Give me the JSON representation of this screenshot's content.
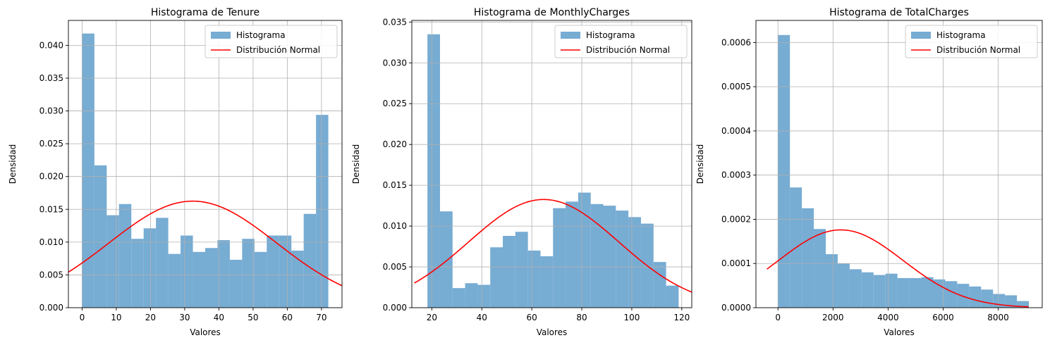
{
  "chart_data": [
    {
      "type": "bar",
      "title": "Histograma de Tenure",
      "xlabel": "Valores",
      "ylabel": "Densidad",
      "xlim": [
        -4,
        76
      ],
      "ylim": [
        0,
        0.0438
      ],
      "xticks": [
        0,
        10,
        20,
        30,
        40,
        50,
        60,
        70
      ],
      "xtick_labels": [
        "0",
        "10",
        "20",
        "30",
        "40",
        "50",
        "60",
        "70"
      ],
      "yticks": [
        0,
        0.005,
        0.01,
        0.015,
        0.02,
        0.025,
        0.03,
        0.035,
        0.04
      ],
      "ytick_labels": [
        "0.000",
        "0.005",
        "0.010",
        "0.015",
        "0.020",
        "0.025",
        "0.030",
        "0.035",
        "0.040"
      ],
      "grid": true,
      "legend_position": "top-right",
      "bin_start": 0,
      "bin_width": 3.6,
      "histogram": [
        0.0418,
        0.0217,
        0.0141,
        0.0158,
        0.0105,
        0.0121,
        0.0137,
        0.0082,
        0.011,
        0.0085,
        0.0091,
        0.0103,
        0.0073,
        0.0105,
        0.0085,
        0.011,
        0.011,
        0.0087,
        0.0143,
        0.0294
      ],
      "normal_curve": {
        "mean": 32.37,
        "std": 24.56,
        "x_range": [
          -4,
          76
        ]
      },
      "series": [
        {
          "name": "Histograma",
          "color": "#77acd3"
        },
        {
          "name": "Distribución Normal",
          "color": "#ff0000"
        }
      ]
    },
    {
      "type": "bar",
      "title": "Histograma de MonthlyCharges",
      "xlabel": "Valores",
      "ylabel": "Densidad",
      "xlim": [
        12,
        124
      ],
      "ylim": [
        0,
        0.0352
      ],
      "xticks": [
        20,
        40,
        60,
        80,
        100,
        120
      ],
      "xtick_labels": [
        "20",
        "40",
        "60",
        "80",
        "100",
        "120"
      ],
      "yticks": [
        0,
        0.005,
        0.01,
        0.015,
        0.02,
        0.025,
        0.03,
        0.035
      ],
      "ytick_labels": [
        "0.000",
        "0.005",
        "0.010",
        "0.015",
        "0.020",
        "0.025",
        "0.030",
        "0.035"
      ],
      "grid": true,
      "legend_position": "top-right",
      "bin_start": 18.25,
      "bin_width": 5.025,
      "histogram": [
        0.0335,
        0.0118,
        0.0024,
        0.003,
        0.0028,
        0.0074,
        0.0088,
        0.0093,
        0.007,
        0.0063,
        0.0122,
        0.013,
        0.0141,
        0.0127,
        0.0125,
        0.0119,
        0.0111,
        0.0103,
        0.0056,
        0.0027
      ],
      "normal_curve": {
        "mean": 64.76,
        "std": 30.09,
        "x_range": [
          13,
          124
        ]
      },
      "series": [
        {
          "name": "Histograma",
          "color": "#77acd3"
        },
        {
          "name": "Distribución Normal",
          "color": "#ff0000"
        }
      ]
    },
    {
      "type": "bar",
      "title": "Histograma de TotalCharges",
      "xlabel": "Valores",
      "ylabel": "Densidad",
      "xlim": [
        -800,
        9600
      ],
      "ylim": [
        0,
        0.00065
      ],
      "xticks": [
        0,
        2000,
        4000,
        6000,
        8000
      ],
      "xtick_labels": [
        "0",
        "2000",
        "4000",
        "6000",
        "8000"
      ],
      "yticks": [
        0,
        0.0001,
        0.0002,
        0.0003,
        0.0004,
        0.0005,
        0.0006
      ],
      "ytick_labels": [
        "0.0000",
        "0.0001",
        "0.0002",
        "0.0003",
        "0.0004",
        "0.0005",
        "0.0006"
      ],
      "grid": true,
      "legend_position": "top-right",
      "bin_start": 0,
      "bin_width": 434,
      "histogram": [
        0.000617,
        0.000272,
        0.000225,
        0.000178,
        0.000121,
        0.0001,
        8.7e-05,
        8e-05,
        7.4e-05,
        7.7e-05,
        6.7e-05,
        6.7e-05,
        6.9e-05,
        6.4e-05,
        6e-05,
        5.4e-05,
        4.8e-05,
        4.1e-05,
        3.1e-05,
        2.8e-05,
        1.5e-05
      ],
      "normal_curve": {
        "mean": 2283,
        "std": 2266,
        "x_range": [
          -400,
          9100
        ]
      },
      "series": [
        {
          "name": "Histograma",
          "color": "#77acd3"
        },
        {
          "name": "Distribución Normal",
          "color": "#ff0000"
        }
      ]
    }
  ]
}
